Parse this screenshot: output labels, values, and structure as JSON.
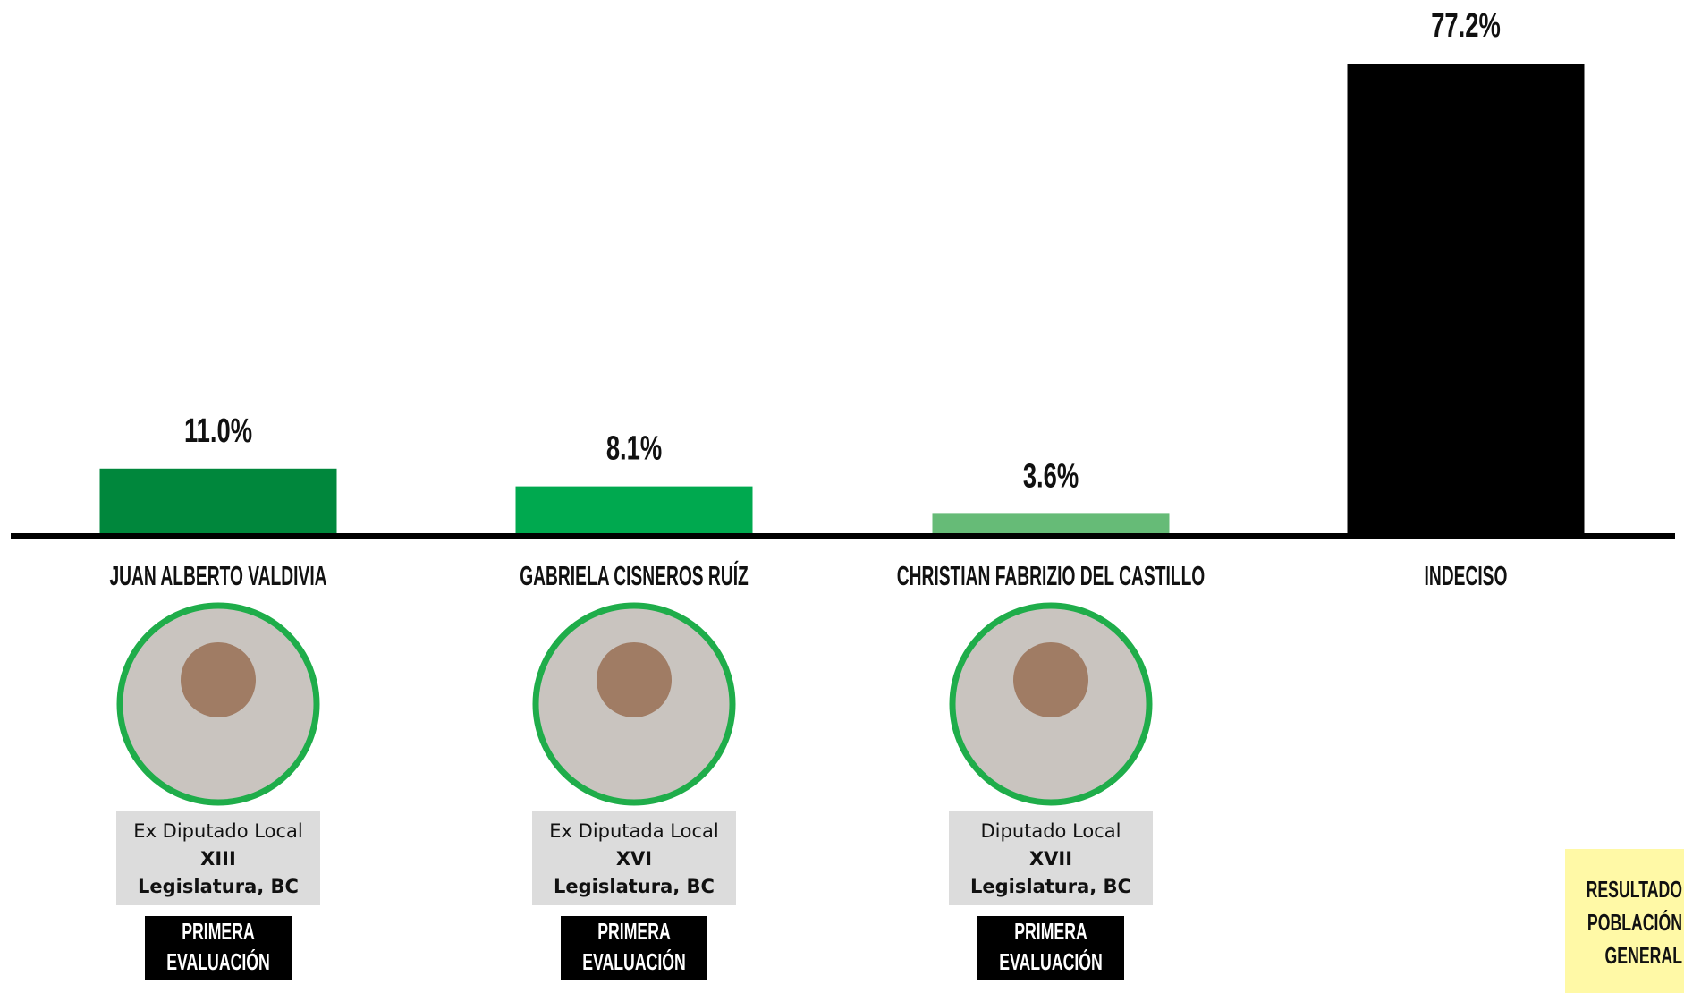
{
  "chart_data": {
    "type": "bar",
    "categories": [
      "JUAN ALBERTO VALDIVIA",
      "GABRIELA CISNEROS RUÍZ",
      "CHRISTIAN FABRIZIO DEL CASTILLO",
      "INDECISO"
    ],
    "values": [
      11.0,
      8.1,
      3.6,
      77.2
    ],
    "value_labels": [
      "11.0%",
      "8.1%",
      "3.6%",
      "77.2%"
    ],
    "colors": [
      "#00873c",
      "#00a94f",
      "#66bb77",
      "#000000"
    ],
    "ylim": [
      0,
      80
    ]
  },
  "candidates": [
    {
      "description": [
        "Ex Diputado Local",
        "XIII",
        "Legislatura, BC"
      ],
      "badge": [
        "PRIMERA",
        "EVALUACIÓN"
      ]
    },
    {
      "description": [
        "Ex Diputada Local",
        "XVI",
        "Legislatura, BC"
      ],
      "badge": [
        "PRIMERA",
        "EVALUACIÓN"
      ]
    },
    {
      "description": [
        "Diputado Local",
        "XVII",
        "Legislatura, BC"
      ],
      "badge": [
        "PRIMERA",
        "EVALUACIÓN"
      ]
    }
  ],
  "note": [
    "RESULTADO",
    "POBLACIÓN",
    "GENERAL"
  ]
}
